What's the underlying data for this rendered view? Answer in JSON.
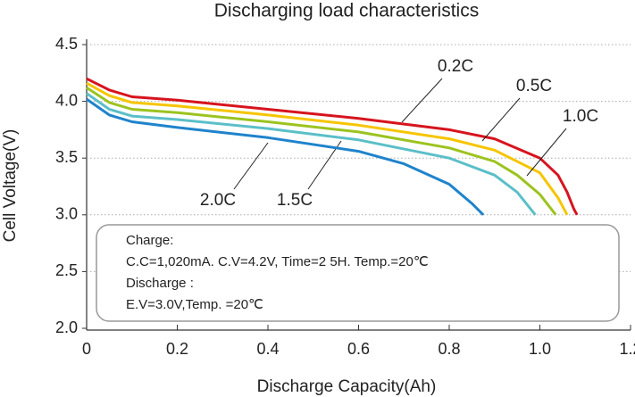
{
  "chart_data": {
    "type": "line",
    "title": "Discharging load characteristics",
    "x_label": "Discharge Capacity(Ah)",
    "y_label": "Cell Voltage(V)",
    "xlim": [
      0,
      1.2
    ],
    "ylim": [
      2.0,
      4.5
    ],
    "xticks": [
      0,
      0.2,
      0.4,
      0.6,
      0.8,
      {
        "value": 1.0,
        "label": "1.0"
      },
      1.2
    ],
    "yticks": [
      {
        "value": 2.0,
        "label": "2.0"
      },
      2.5,
      {
        "value": 3.0,
        "label": "3.0"
      },
      3.5,
      {
        "value": 4.0,
        "label": "4.0"
      },
      4.5
    ],
    "grid": true,
    "series": [
      {
        "name": "0.2C",
        "color": "#d7141e",
        "x": [
          0,
          0.05,
          0.1,
          0.2,
          0.4,
          0.6,
          0.8,
          0.9,
          1.0,
          1.04,
          1.06,
          1.075,
          1.082
        ],
        "values": [
          4.2,
          4.1,
          4.04,
          4.01,
          3.93,
          3.85,
          3.75,
          3.67,
          3.5,
          3.35,
          3.2,
          3.05,
          3.0
        ]
      },
      {
        "name": "0.5C",
        "color": "#f6c500",
        "x": [
          0,
          0.05,
          0.1,
          0.2,
          0.4,
          0.6,
          0.8,
          0.9,
          1.0,
          1.04,
          1.06
        ],
        "values": [
          4.16,
          4.05,
          3.99,
          3.96,
          3.88,
          3.79,
          3.67,
          3.57,
          3.37,
          3.15,
          3.0
        ]
      },
      {
        "name": "1.0C",
        "color": "#9cc31f",
        "x": [
          0,
          0.05,
          0.1,
          0.2,
          0.4,
          0.6,
          0.8,
          0.9,
          0.95,
          1.0,
          1.035
        ],
        "values": [
          4.12,
          3.99,
          3.93,
          3.9,
          3.82,
          3.73,
          3.59,
          3.47,
          3.35,
          3.18,
          3.0
        ]
      },
      {
        "name": "1.5C",
        "color": "#5bbfc8",
        "x": [
          0,
          0.05,
          0.1,
          0.2,
          0.4,
          0.6,
          0.8,
          0.9,
          0.95,
          0.99
        ],
        "values": [
          4.07,
          3.93,
          3.87,
          3.84,
          3.76,
          3.66,
          3.5,
          3.35,
          3.2,
          3.0
        ]
      },
      {
        "name": "2.0C",
        "color": "#1f83cc",
        "x": [
          0,
          0.05,
          0.1,
          0.2,
          0.4,
          0.6,
          0.7,
          0.8,
          0.85,
          0.875
        ],
        "values": [
          4.02,
          3.88,
          3.82,
          3.77,
          3.68,
          3.56,
          3.45,
          3.27,
          3.1,
          3.0
        ]
      }
    ],
    "notes": [
      "Charge:",
      "C.C=1,020mA. C.V=4.2V, Time=2 5H. Temp.=20℃",
      "Discharge :",
      "E.V=3.0V,Temp. =20℃"
    ]
  }
}
